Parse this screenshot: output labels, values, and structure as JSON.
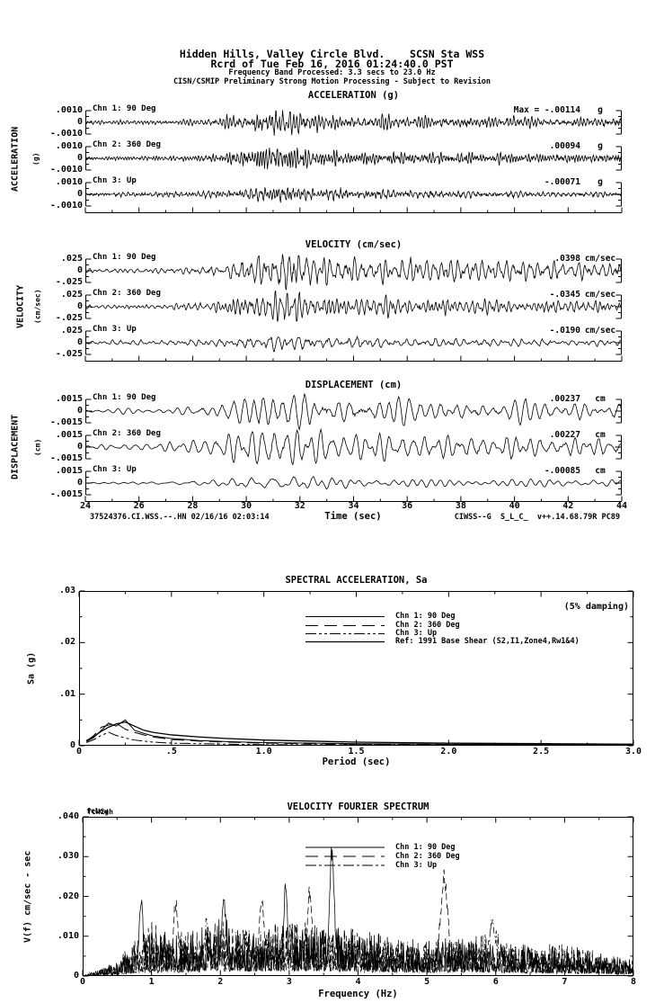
{
  "header": {
    "line1": "Hidden Hills, Valley Circle Blvd.    SCSN Sta WSS",
    "line2": "Rcrd of Tue Feb 16, 2016 01:24:40.0 PST",
    "line3": "Frequency Band Processed: 3.3 secs to 23.0 Hz",
    "line4": "CISN/CSMIP Preliminary Strong Motion Processing - Subject to Revision"
  },
  "timeseries": {
    "time_axis": {
      "label": "Time (sec)",
      "ticks": [
        "24",
        "26",
        "28",
        "30",
        "32",
        "34",
        "36",
        "38",
        "40",
        "42",
        "44"
      ]
    },
    "footer_left": "37524376.CI.WSS.--.HN 02/16/16 02:03:14",
    "footer_right": "CIWSS--G  S_L_C_  v++.14.68.79R PC89",
    "groups": [
      {
        "title": "ACCELERATION (g)",
        "side_label": "ACCELERATION",
        "side_sublabel": "(g)",
        "scale_top": ".0010",
        "scale_mid": "0",
        "scale_bottom": "-.0010",
        "channels": [
          {
            "label": "Chn 1: 90 Deg",
            "max_prefix": "Max = ",
            "max_value": "-.00114",
            "unit": "g"
          },
          {
            "label": "Chn 2: 360 Deg",
            "max_prefix": "",
            "max_value": ".00094",
            "unit": "g"
          },
          {
            "label": "Chn 3: Up",
            "max_prefix": "",
            "max_value": "-.00071",
            "unit": "g"
          }
        ]
      },
      {
        "title": "VELOCITY (cm/sec)",
        "side_label": "VELOCITY",
        "side_sublabel": "(cm/sec)",
        "scale_top": ".025",
        "scale_mid": "0",
        "scale_bottom": "-.025",
        "channels": [
          {
            "label": "Chn 1: 90 Deg",
            "max_prefix": "",
            "max_value": ".0398",
            "unit": "cm/sec"
          },
          {
            "label": "Chn 2: 360 Deg",
            "max_prefix": "",
            "max_value": "-.0345",
            "unit": "cm/sec"
          },
          {
            "label": "Chn 3: Up",
            "max_prefix": "",
            "max_value": "-.0190",
            "unit": "cm/sec"
          }
        ]
      },
      {
        "title": "DISPLACEMENT (cm)",
        "side_label": "DISPLACEMENT",
        "side_sublabel": "(cm)",
        "scale_top": ".0015",
        "scale_mid": "0",
        "scale_bottom": "-.0015",
        "channels": [
          {
            "label": "Chn 1: 90 Deg",
            "max_prefix": "",
            "max_value": ".00237",
            "unit": "cm"
          },
          {
            "label": "Chn 2: 360 Deg",
            "max_prefix": "",
            "max_value": ".00227",
            "unit": "cm"
          },
          {
            "label": "Chn 3: Up",
            "max_prefix": "",
            "max_value": "-.00085",
            "unit": "cm"
          }
        ]
      }
    ]
  },
  "sa": {
    "title": "SPECTRAL ACCELERATION, Sa",
    "damping_note": "(5% damping)",
    "ylabel": "Sa (g)",
    "xlabel": "Period (sec)",
    "y_ticks": [
      ".03",
      ".02",
      ".01",
      "0"
    ],
    "x_ticks": [
      "0",
      ".5",
      "1.0",
      "1.5",
      "2.0",
      "2.5",
      "3.0"
    ],
    "legend": [
      "Chn 1: 90 Deg",
      "Chn 2: 360 Deg",
      "Chn 3: Up",
      "Ref: 1991 Base Shear (S2,I1,Zone4,Rw1&4)"
    ]
  },
  "fourier": {
    "title": "VELOCITY FOURIER SPECTRUM",
    "ylabel": "V(f)  cm/sec - sec",
    "xlabel": "Frequency (Hz)",
    "fc_low": "fcLow",
    "fc_high": "fcHigh",
    "y_ticks": [
      ".040",
      ".030",
      ".020",
      ".010",
      "0"
    ],
    "x_ticks": [
      "0",
      "1",
      "2",
      "3",
      "4",
      "5",
      "6",
      "7",
      "8"
    ],
    "legend": [
      "Chn 1: 90 Deg",
      "Chn 2: 360 Deg",
      "Chn 3: Up"
    ]
  },
  "chart_data": [
    {
      "id": "acceleration",
      "type": "line",
      "title": "ACCELERATION (g)",
      "xlabel": "Time (sec)",
      "x_range": [
        24,
        44
      ],
      "scale": 0.001,
      "unit": "g",
      "series": [
        {
          "name": "Chn 1: 90 Deg",
          "peak": -0.00114,
          "envelope": [
            0.15,
            0.15,
            0.17,
            0.2,
            0.22,
            0.3,
            0.8,
            1,
            0.75,
            0.55,
            0.5,
            0.55,
            0.45,
            0.5,
            0.45,
            0.4,
            0.45,
            0.4,
            0.35,
            0.33,
            0.3
          ]
        },
        {
          "name": "Chn 2: 360 Deg",
          "peak": 0.00094,
          "envelope": [
            0.15,
            0.16,
            0.18,
            0.2,
            0.25,
            0.4,
            0.7,
            1,
            0.9,
            0.6,
            0.55,
            0.5,
            0.5,
            0.45,
            0.5,
            0.45,
            0.4,
            0.38,
            0.36,
            0.33,
            0.3
          ]
        },
        {
          "name": "Chn 3: Up",
          "peak": -0.00071,
          "envelope": [
            0.3,
            0.3,
            0.32,
            0.35,
            0.4,
            0.5,
            0.7,
            1,
            0.9,
            0.7,
            0.65,
            0.6,
            0.6,
            0.55,
            0.5,
            0.5,
            0.45,
            0.45,
            0.4,
            0.4,
            0.38
          ]
        }
      ]
    },
    {
      "id": "velocity",
      "type": "line",
      "title": "VELOCITY (cm/sec)",
      "xlabel": "Time (sec)",
      "x_range": [
        24,
        44
      ],
      "scale": 0.025,
      "unit": "cm/sec",
      "series": [
        {
          "name": "Chn 1: 90 Deg",
          "peak": 0.0398,
          "envelope": [
            0.12,
            0.13,
            0.15,
            0.17,
            0.2,
            0.3,
            0.7,
            1,
            0.95,
            0.75,
            0.65,
            0.6,
            0.65,
            0.55,
            0.6,
            0.5,
            0.55,
            0.45,
            0.42,
            0.38,
            0.35
          ]
        },
        {
          "name": "Chn 2: 360 Deg",
          "peak": -0.0345,
          "envelope": [
            0.12,
            0.14,
            0.16,
            0.18,
            0.22,
            0.45,
            0.85,
            1,
            0.9,
            0.7,
            0.65,
            0.6,
            0.6,
            0.55,
            0.5,
            0.5,
            0.45,
            0.42,
            0.4,
            0.36,
            0.33
          ]
        },
        {
          "name": "Chn 3: Up",
          "peak": -0.019,
          "envelope": [
            0.3,
            0.32,
            0.34,
            0.36,
            0.4,
            0.5,
            0.75,
            1,
            0.9,
            0.75,
            0.7,
            0.65,
            0.6,
            0.6,
            0.55,
            0.55,
            0.5,
            0.48,
            0.45,
            0.42,
            0.4
          ]
        }
      ]
    },
    {
      "id": "displacement",
      "type": "line",
      "title": "DISPLACEMENT (cm)",
      "xlabel": "Time (sec)",
      "x_range": [
        24,
        44
      ],
      "scale": 0.0015,
      "unit": "cm",
      "series": [
        {
          "name": "Chn 1: 90 Deg",
          "peak": 0.00237,
          "envelope": [
            0.1,
            0.12,
            0.15,
            0.2,
            0.3,
            0.45,
            0.8,
            1,
            0.95,
            0.8,
            0.75,
            0.7,
            0.65,
            0.6,
            0.65,
            0.6,
            0.55,
            0.6,
            0.55,
            0.5,
            0.5
          ]
        },
        {
          "name": "Chn 2: 360 Deg",
          "peak": 0.00227,
          "envelope": [
            0.1,
            0.12,
            0.15,
            0.2,
            0.35,
            0.5,
            0.9,
            1,
            0.9,
            0.8,
            0.7,
            0.7,
            0.65,
            0.6,
            0.6,
            0.55,
            0.6,
            0.55,
            0.5,
            0.5,
            0.45
          ]
        },
        {
          "name": "Chn 3: Up",
          "peak": -0.00085,
          "envelope": [
            0.2,
            0.22,
            0.25,
            0.3,
            0.35,
            0.45,
            0.7,
            1,
            0.85,
            0.7,
            0.65,
            0.6,
            0.55,
            0.55,
            0.5,
            0.5,
            0.45,
            0.45,
            0.4,
            0.4,
            0.38
          ]
        }
      ]
    },
    {
      "id": "spectral_acceleration",
      "type": "line",
      "title": "SPECTRAL ACCELERATION, Sa",
      "xlabel": "Period (sec)",
      "ylabel": "Sa (g)",
      "xlim": [
        0,
        3
      ],
      "ylim": [
        0,
        0.03
      ],
      "note": "(5% damping)",
      "legend_position": "upper-center",
      "x": [
        0.04,
        0.08,
        0.12,
        0.16,
        0.2,
        0.25,
        0.3,
        0.35,
        0.4,
        0.5,
        0.65,
        0.8,
        1.0,
        1.5,
        2.0,
        2.5,
        3.0
      ],
      "series": [
        {
          "name": "Chn 1: 90 Deg",
          "values": [
            0.0008,
            0.0016,
            0.003,
            0.0044,
            0.0038,
            0.005,
            0.003,
            0.0024,
            0.0019,
            0.0014,
            0.001,
            0.0008,
            0.0006,
            0.0004,
            0.0003,
            0.0002,
            0.0002
          ]
        },
        {
          "name": "Chn 2: 360 Deg",
          "values": [
            0.0009,
            0.002,
            0.0036,
            0.004,
            0.0044,
            0.0032,
            0.0026,
            0.0021,
            0.0017,
            0.0012,
            0.0009,
            0.0007,
            0.0005,
            0.0003,
            0.0002,
            0.0002,
            0.0001
          ]
        },
        {
          "name": "Chn 3: Up",
          "values": [
            0.0006,
            0.0012,
            0.002,
            0.0026,
            0.002,
            0.0015,
            0.0011,
            0.0009,
            0.0007,
            0.0005,
            0.0004,
            0.0003,
            0.0002,
            0.0002,
            0.0001,
            0.0001,
            0.0001
          ]
        },
        {
          "name": "Ref: 1991 Base Shear (S2,I1,Zone4,Rw1&4)",
          "values": [
            0.001,
            0.0018,
            0.0028,
            0.0036,
            0.0042,
            0.0046,
            0.0038,
            0.003,
            0.0026,
            0.0021,
            0.0017,
            0.0014,
            0.0011,
            0.0007,
            0.0005,
            0.0004,
            0.0003
          ]
        }
      ]
    },
    {
      "id": "velocity_fourier_spectrum",
      "type": "line",
      "title": "VELOCITY FOURIER SPECTRUM",
      "xlabel": "Frequency (Hz)",
      "ylabel": "V(f)  cm/sec - sec",
      "xlim": [
        0,
        8
      ],
      "ylim": [
        0,
        0.04
      ],
      "x_envelope_hz": [
        0,
        0.5,
        1,
        1.5,
        2,
        2.5,
        3,
        3.5,
        4,
        4.5,
        5,
        5.5,
        6,
        6.5,
        7,
        7.5,
        8
      ],
      "series": [
        {
          "name": "Chn 1: 90 Deg",
          "envelope": [
            0,
            0.003,
            0.012,
            0.01,
            0.015,
            0.011,
            0.013,
            0.012,
            0.013,
            0.01,
            0.009,
            0.01,
            0.008,
            0.008,
            0.007,
            0.006,
            0.004
          ],
          "peaks": [
            {
              "x": 3.62,
              "v": 0.035,
              "w": 0.05
            },
            {
              "x": 2.05,
              "v": 0.02,
              "w": 0.05
            },
            {
              "x": 0.85,
              "v": 0.022,
              "w": 0.04
            },
            {
              "x": 2.95,
              "v": 0.025,
              "w": 0.04
            }
          ]
        },
        {
          "name": "Chn 2: 360 Deg",
          "envelope": [
            0,
            0.004,
            0.014,
            0.011,
            0.014,
            0.012,
            0.016,
            0.013,
            0.012,
            0.01,
            0.009,
            0.009,
            0.008,
            0.007,
            0.009,
            0.006,
            0.004
          ],
          "peaks": [
            {
              "x": 5.25,
              "v": 0.027,
              "w": 0.08
            },
            {
              "x": 1.35,
              "v": 0.02,
              "w": 0.05
            },
            {
              "x": 2.6,
              "v": 0.022,
              "w": 0.05
            },
            {
              "x": 3.3,
              "v": 0.024,
              "w": 0.05
            }
          ]
        },
        {
          "name": "Chn 3: Up",
          "envelope": [
            0,
            0.003,
            0.008,
            0.009,
            0.011,
            0.012,
            0.01,
            0.011,
            0.01,
            0.009,
            0.008,
            0.009,
            0.012,
            0.007,
            0.006,
            0.005,
            0.003
          ],
          "peaks": [
            {
              "x": 5.95,
              "v": 0.016,
              "w": 0.06
            },
            {
              "x": 1.8,
              "v": 0.015,
              "w": 0.05
            }
          ]
        }
      ]
    }
  ]
}
